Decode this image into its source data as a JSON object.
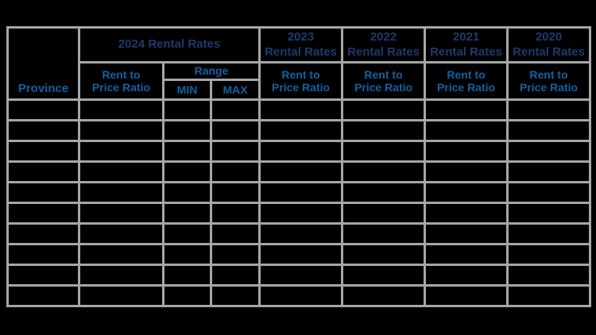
{
  "colors": {
    "background": "#000000",
    "header_bg": "#dbe4f0",
    "year_text": "#1e3a6e",
    "label_text": "#1361a0",
    "border": "#a6a6a6"
  },
  "table": {
    "province_label": "Province",
    "group_2024": {
      "title": "2024 Rental Rates",
      "ratio": "Rent to\nPrice Ratio",
      "range": "Range",
      "min": "MIN",
      "max": "MAX"
    },
    "year_groups": [
      {
        "title": "2023\nRental Rates",
        "ratio": "Rent to\nPrice Ratio"
      },
      {
        "title": "2022\nRental Rates",
        "ratio": "Rent to\nPrice Ratio"
      },
      {
        "title": "2021\nRental Rates",
        "ratio": "Rent to\nPrice Ratio"
      },
      {
        "title": "2020\nRental Rates",
        "ratio": "Rent to\nPrice Ratio"
      }
    ],
    "body_rows": [
      [
        "",
        "",
        "",
        "",
        "",
        "",
        "",
        ""
      ],
      [
        "",
        "",
        "",
        "",
        "",
        "",
        "",
        ""
      ],
      [
        "",
        "",
        "",
        "",
        "",
        "",
        "",
        ""
      ],
      [
        "",
        "",
        "",
        "",
        "",
        "",
        "",
        ""
      ],
      [
        "",
        "",
        "",
        "",
        "",
        "",
        "",
        ""
      ],
      [
        "",
        "",
        "",
        "",
        "",
        "",
        "",
        ""
      ],
      [
        "",
        "",
        "",
        "",
        "",
        "",
        "",
        ""
      ],
      [
        "",
        "",
        "",
        "",
        "",
        "",
        "",
        ""
      ],
      [
        "",
        "",
        "",
        "",
        "",
        "",
        "",
        ""
      ],
      [
        "",
        "",
        "",
        "",
        "",
        "",
        "",
        ""
      ]
    ]
  },
  "chart_data": {
    "type": "table",
    "columns": [
      "Province",
      "2024 Rental Rates - Rent to Price Ratio",
      "2024 Rental Rates - Range MIN",
      "2024 Rental Rates - Range MAX",
      "2023 Rental Rates - Rent to Price Ratio",
      "2022 Rental Rates - Rent to Price Ratio",
      "2021 Rental Rates - Rent to Price Ratio",
      "2020 Rental Rates - Rent to Price Ratio"
    ],
    "rows": [
      [
        "",
        "",
        "",
        "",
        "",
        "",
        "",
        ""
      ],
      [
        "",
        "",
        "",
        "",
        "",
        "",
        "",
        ""
      ],
      [
        "",
        "",
        "",
        "",
        "",
        "",
        "",
        ""
      ],
      [
        "",
        "",
        "",
        "",
        "",
        "",
        "",
        ""
      ],
      [
        "",
        "",
        "",
        "",
        "",
        "",
        "",
        ""
      ],
      [
        "",
        "",
        "",
        "",
        "",
        "",
        "",
        ""
      ],
      [
        "",
        "",
        "",
        "",
        "",
        "",
        "",
        ""
      ],
      [
        "",
        "",
        "",
        "",
        "",
        "",
        "",
        ""
      ],
      [
        "",
        "",
        "",
        "",
        "",
        "",
        "",
        ""
      ],
      [
        "",
        "",
        "",
        "",
        "",
        "",
        "",
        ""
      ]
    ],
    "layout": {
      "grid": true,
      "header_fill": "#dbe4f0",
      "body_fill": "#000000",
      "border_color": "#a6a6a6"
    }
  }
}
